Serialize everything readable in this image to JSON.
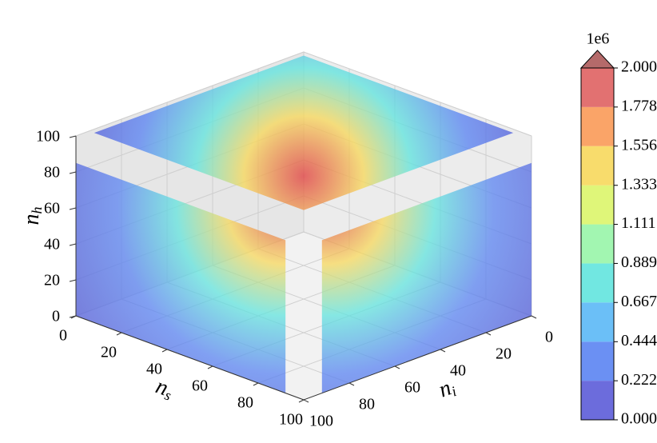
{
  "chart_data": {
    "type": "scatter3d",
    "xlabel": {
      "base": "n",
      "sub": "s"
    },
    "ylabel": {
      "base": "n",
      "sub": "i"
    },
    "zlabel": {
      "base": "n",
      "sub": "h"
    },
    "xlim": [
      0,
      100
    ],
    "xticks": [
      0,
      20,
      40,
      60,
      80,
      100
    ],
    "ylim": [
      0,
      100
    ],
    "yticks": [
      0,
      20,
      40,
      60,
      80,
      100
    ],
    "zlim": [
      0,
      100
    ],
    "zticks": [
      0,
      20,
      40,
      60,
      80,
      100
    ],
    "grid": true,
    "colorbar": {
      "label": "1e6",
      "clim": [
        0,
        2
      ],
      "ticks": [
        {
          "value": 0,
          "label": "0.000"
        },
        {
          "value": 0.222,
          "label": "0.222"
        },
        {
          "value": 0.444,
          "label": "0.444"
        },
        {
          "value": 0.667,
          "label": "0.667"
        },
        {
          "value": 0.889,
          "label": "0.889"
        },
        {
          "value": 1.111,
          "label": "1.111"
        },
        {
          "value": 1.333,
          "label": "1.333"
        },
        {
          "value": 1.556,
          "label": "1.556"
        },
        {
          "value": 1.778,
          "label": "1.778"
        },
        {
          "value": 2,
          "label": "2.000"
        }
      ],
      "colors": [
        "#5c5cd8",
        "#5b84f2",
        "#5bb8f6",
        "#62e4de",
        "#98f5a8",
        "#dcf56a",
        "#f7d85c",
        "#fa9a58",
        "#df6262"
      ],
      "extend_color": "#b56a6a"
    }
  }
}
